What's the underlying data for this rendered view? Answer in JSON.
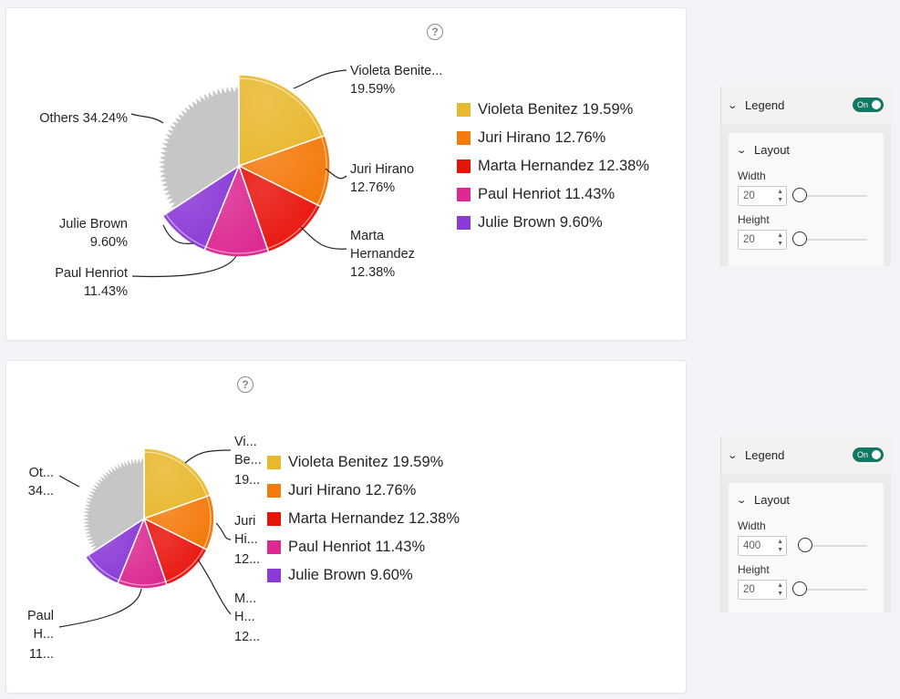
{
  "chart_data": [
    {
      "type": "pie",
      "title": "",
      "categories": [
        "Violeta Benitez",
        "Juri Hirano",
        "Marta Hernandez",
        "Paul Henriot",
        "Julie Brown",
        "Others"
      ],
      "values": [
        19.59,
        12.76,
        12.38,
        11.43,
        9.6,
        34.24
      ],
      "colors": [
        "#e8b82e",
        "#f47a0c",
        "#e8140c",
        "#dc2a92",
        "#8a3ad6",
        "#c8c8c8"
      ],
      "data_labels": [
        [
          "Violeta Benite...",
          "19.59%"
        ],
        [
          "Juri Hirano",
          "12.76%"
        ],
        [
          "Marta",
          "Hernandez",
          "12.38%"
        ],
        [
          "Paul Henriot",
          "11.43%"
        ],
        [
          "Julie Brown",
          "9.60%"
        ],
        [
          "Others 34.24%"
        ]
      ],
      "legend": {
        "placement": "right",
        "entries": [
          "Violeta Benitez 19.59%",
          "Juri Hirano 12.76%",
          "Marta Hernandez 12.38%",
          "Paul Henriot 11.43%",
          "Julie Brown 9.60%"
        ]
      }
    },
    {
      "type": "pie",
      "title": "",
      "categories": [
        "Violeta Benitez",
        "Juri Hirano",
        "Marta Hernandez",
        "Paul Henriot",
        "Julie Brown",
        "Others"
      ],
      "values": [
        19.59,
        12.76,
        12.38,
        11.43,
        9.6,
        34.24
      ],
      "colors": [
        "#e8b82e",
        "#f47a0c",
        "#e8140c",
        "#dc2a92",
        "#8a3ad6",
        "#c8c8c8"
      ],
      "data_labels": [
        [
          "Vi...",
          "Be...",
          "19..."
        ],
        [
          "Juri",
          "Hi...",
          "12..."
        ],
        [
          "M...",
          "H...",
          "12..."
        ],
        [
          "Paul",
          "H...",
          "11..."
        ],
        [],
        [
          "Ot...",
          "34..."
        ]
      ],
      "legend": {
        "placement": "right",
        "entries": [
          "Violeta Benitez 19.59%",
          "Juri Hirano 12.76%",
          "Marta Hernandez 12.38%",
          "Paul Henriot 11.43%",
          "Julie Brown 9.60%"
        ]
      }
    }
  ],
  "panels": [
    {
      "section_label": "Legend",
      "toggle_label": "On",
      "subsection_label": "Layout",
      "width_label": "Width",
      "width_value": "20",
      "width_slider_fraction": 0.0,
      "height_label": "Height",
      "height_value": "20",
      "height_slider_fraction": 0.0
    },
    {
      "section_label": "Legend",
      "toggle_label": "On",
      "subsection_label": "Layout",
      "width_label": "Width",
      "width_value": "400",
      "width_slider_fraction": 0.09,
      "height_label": "Height",
      "height_value": "20",
      "height_slider_fraction": 0.0
    }
  ],
  "icons": {
    "help": "help-circle-icon",
    "chevron": "chevron-down-icon"
  }
}
